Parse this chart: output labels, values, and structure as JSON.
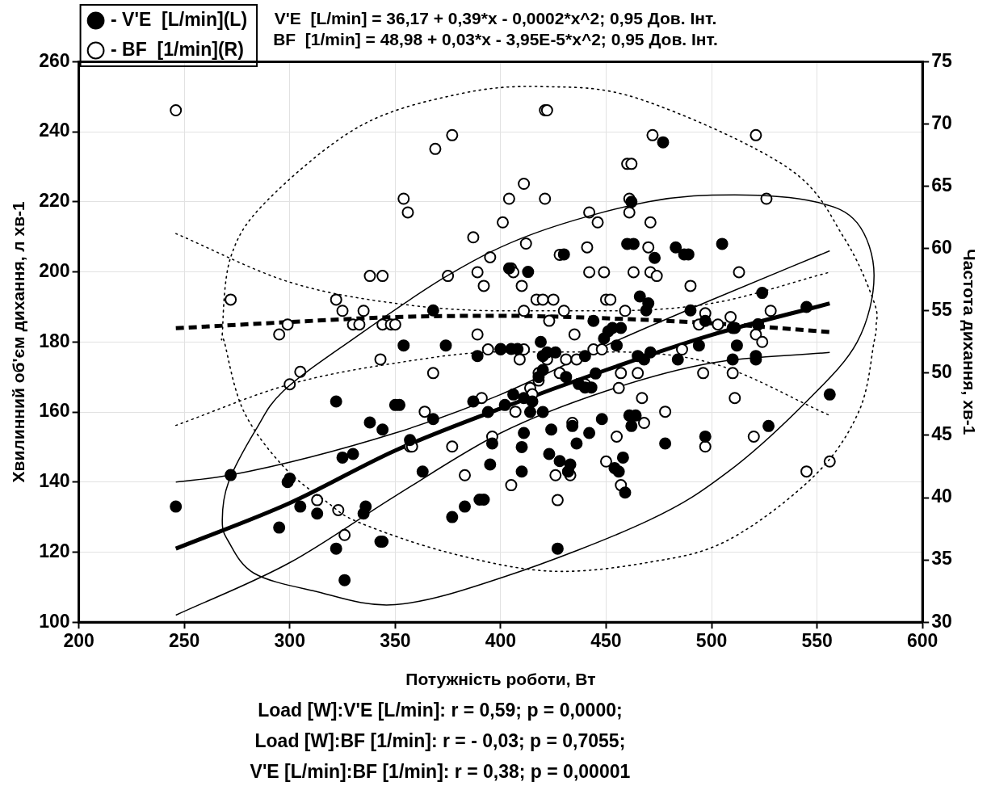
{
  "chart_data": {
    "type": "scatter",
    "title": "V'E  [L/min] = 36,17 + 0,39*x - 0,0002*x^2; 0,95 Дов. Інт.\nBF  [1/min] = 48,98 + 0,03*x - 3,95E-5*x^2; 0,95 Дов. Інт.",
    "xlabel": "Потужність роботи, Вт",
    "ylabel": "Хвилинний об'єм дихання, л хв-1",
    "y2label": "Частота дихання, хв-1",
    "annotations": [
      "Load [W]:V'E [L/min]: r = 0,59; p = 0,0000;",
      "Load [W]:BF [1/min]: r = - 0,03; p = 0,7055;",
      "V'E [L/min]:BF [1/min]: r = 0,38; p = 0,00001"
    ],
    "xlim": [
      200,
      600
    ],
    "xticks": [
      200,
      250,
      300,
      350,
      400,
      450,
      500,
      550,
      600
    ],
    "ylim": [
      100,
      260
    ],
    "yticks": [
      100,
      120,
      140,
      160,
      180,
      200,
      220,
      240,
      260
    ],
    "y2lim": [
      30,
      75
    ],
    "y2ticks": [
      30,
      35,
      40,
      45,
      50,
      55,
      60,
      65,
      70,
      75
    ],
    "grid": true,
    "legend": "top left",
    "series": [
      {
        "type": "scatter",
        "axis": "y",
        "color": "#000000",
        "marker": "circle",
        "x": [
          246,
          272,
          295,
          299,
          300,
          305,
          313,
          322,
          322,
          325,
          326,
          330,
          335,
          336,
          338,
          343,
          344,
          344,
          350,
          352,
          354,
          357,
          363,
          368,
          368,
          374,
          377,
          383,
          387,
          389,
          390,
          392,
          394,
          395,
          396,
          400,
          402,
          404,
          405,
          406,
          408,
          410,
          410,
          411,
          411,
          413,
          414,
          415,
          418,
          419,
          420,
          420,
          420,
          422,
          423,
          424,
          426,
          427,
          428,
          430,
          431,
          432,
          433,
          434,
          436,
          437,
          440,
          440,
          442,
          443,
          444,
          445,
          448,
          449,
          451,
          453,
          454,
          455,
          456,
          457,
          458,
          459,
          460,
          461,
          462,
          462,
          463,
          464,
          465,
          466,
          468,
          469,
          470,
          471,
          473,
          477,
          478,
          483,
          484,
          487,
          489,
          490,
          494,
          497,
          497,
          505,
          510,
          510,
          511,
          512,
          521,
          521,
          522,
          524,
          527,
          545,
          556
        ],
        "values": [
          133,
          142,
          127,
          140,
          141,
          133,
          131,
          163,
          121,
          147,
          112,
          148,
          131,
          133,
          157,
          123,
          155,
          123,
          162,
          162,
          179,
          152,
          143,
          189,
          158,
          179,
          130,
          133,
          163,
          176,
          135,
          135,
          160,
          145,
          151,
          178,
          162,
          201,
          178,
          165,
          178,
          150,
          143,
          164,
          154,
          200,
          160,
          163,
          170,
          180,
          176,
          160,
          172,
          177,
          148,
          155,
          177,
          121,
          146,
          205,
          170,
          143,
          145,
          156,
          151,
          168,
          176,
          167,
          154,
          167,
          186,
          171,
          158,
          181,
          183,
          184,
          144,
          179,
          143,
          184,
          147,
          137,
          208,
          159,
          220,
          156,
          208,
          159,
          176,
          193,
          175,
          189,
          191,
          177,
          204,
          237,
          151,
          207,
          175,
          205,
          205,
          189,
          179,
          153,
          186,
          208,
          175,
          184,
          184,
          179,
          176,
          175,
          185,
          194,
          156,
          190,
          165
        ]
      },
      {
        "type": "scatter",
        "axis": "y2",
        "color": "#000000",
        "marker": "circle",
        "x": [
          246,
          272,
          295,
          299,
          300,
          305,
          313,
          322,
          323,
          325,
          326,
          330,
          333,
          335,
          338,
          343,
          344,
          344,
          348,
          350,
          354,
          356,
          357,
          358,
          364,
          368,
          369,
          375,
          377,
          377,
          383,
          387,
          389,
          389,
          391,
          392,
          394,
          395,
          396,
          400,
          401,
          404,
          405,
          405,
          406,
          407,
          409,
          410,
          411,
          411,
          411,
          412,
          414,
          415,
          417,
          418,
          418,
          420,
          421,
          422,
          421,
          422,
          423,
          425,
          426,
          427,
          428,
          428,
          430,
          431,
          432,
          433,
          434,
          435,
          436,
          440,
          441,
          442,
          442,
          444,
          446,
          448,
          449,
          450,
          450,
          452,
          455,
          456,
          457,
          457,
          459,
          460,
          461,
          461,
          462,
          463,
          465,
          467,
          468,
          470,
          471,
          471,
          472,
          474,
          478,
          486,
          490,
          494,
          496,
          497,
          497,
          503,
          509,
          510,
          511,
          513,
          520,
          521,
          521,
          522,
          524,
          526,
          528,
          545,
          556
        ],
        "values": [
          71.1,
          55.9,
          53.1,
          53.9,
          49.1,
          50.1,
          39.8,
          55.9,
          39.0,
          55.0,
          37.0,
          53.9,
          53.9,
          55.0,
          57.8,
          51.1,
          53.9,
          57.8,
          53.9,
          53.9,
          64.0,
          62.9,
          44.1,
          44.1,
          46.9,
          50.0,
          68.0,
          57.8,
          69.1,
          44.1,
          41.8,
          60.9,
          58.1,
          53.1,
          48.0,
          57.0,
          51.9,
          59.3,
          44.9,
          51.9,
          62.1,
          64.0,
          58.4,
          41.0,
          58.1,
          46.9,
          51.1,
          57.0,
          65.2,
          55.0,
          51.9,
          60.4,
          48.8,
          48.3,
          55.9,
          50.0,
          49.4,
          55.9,
          71.1,
          71.1,
          64.0,
          51.1,
          54.2,
          55.9,
          41.8,
          39.8,
          50.0,
          59.5,
          55.0,
          51.1,
          42.1,
          41.8,
          46.0,
          53.1,
          51.1,
          49.1,
          60.1,
          58.1,
          62.9,
          51.9,
          62.1,
          51.9,
          58.1,
          55.9,
          42.9,
          55.9,
          44.9,
          48.8,
          50.0,
          41.0,
          55.0,
          66.8,
          62.9,
          64.0,
          66.8,
          58.1,
          50.0,
          48.0,
          46.0,
          60.1,
          62.1,
          58.1,
          69.1,
          57.8,
          46.9,
          51.9,
          57.0,
          53.9,
          50.0,
          44.1,
          54.8,
          53.9,
          54.5,
          50.0,
          48.0,
          58.1,
          44.9,
          69.1,
          53.1,
          53.9,
          52.5,
          64.0,
          55.0,
          42.1,
          42.9
        ]
      },
      {
        "type": "line",
        "name": "- V'E  [L/min](L)",
        "axis": "y",
        "color": "#000000",
        "line_style": "solid",
        "x": [
          246,
          300,
          350,
          400,
          450,
          500,
          556
        ],
        "values": [
          121,
          134,
          149,
          161,
          172,
          182,
          191
        ]
      },
      {
        "type": "line",
        "axis": "y",
        "color": "#000000",
        "line_style": "solid",
        "x": [
          246,
          272,
          350,
          400,
          450,
          500,
          556
        ],
        "values": [
          140,
          142,
          154,
          165,
          179,
          192,
          206
        ]
      },
      {
        "type": "line",
        "axis": "y",
        "color": "#000000",
        "line_style": "solid",
        "x": [
          246,
          300,
          350,
          400,
          450,
          500,
          556
        ],
        "values": [
          102,
          117,
          136,
          154,
          166,
          174,
          177
        ]
      },
      {
        "type": "line",
        "name": "- BF  [1/min](R)",
        "axis": "y2",
        "color": "#000000",
        "line_style": "dashed",
        "x": [
          246,
          300,
          350,
          400,
          450,
          500,
          556
        ],
        "values": [
          53.6,
          54.1,
          54.5,
          54.6,
          54.4,
          54.0,
          53.3
        ]
      },
      {
        "type": "line",
        "axis": "y2",
        "color": "#000000",
        "line_style": "dotted",
        "x": [
          246,
          300,
          350,
          400,
          450,
          500,
          556
        ],
        "values": [
          61.2,
          57.3,
          55.6,
          55.0,
          55.0,
          55.6,
          58.1
        ]
      },
      {
        "type": "line",
        "axis": "y2",
        "color": "#000000",
        "line_style": "dotted",
        "x": [
          246,
          300,
          350,
          400,
          450,
          500,
          556
        ],
        "values": [
          45.8,
          49.1,
          50.8,
          51.7,
          51.7,
          50.8,
          46.6
        ]
      }
    ]
  }
}
